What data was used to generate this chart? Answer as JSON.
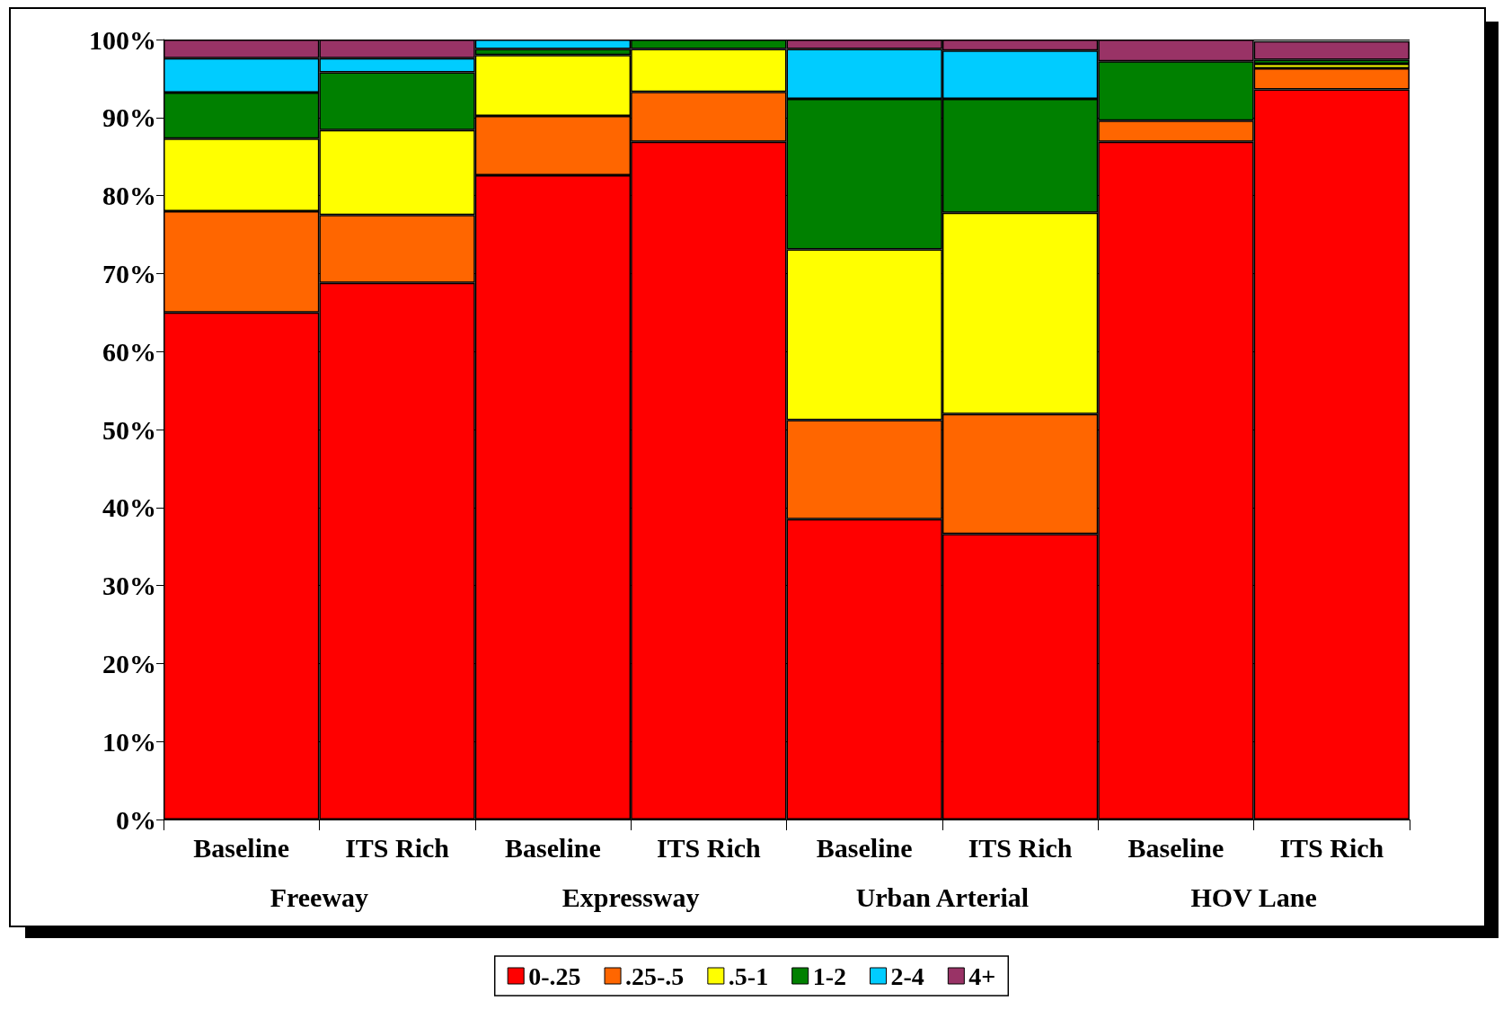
{
  "chart_data": {
    "type": "bar",
    "stacked": true,
    "categories": [
      "Baseline",
      "ITS Rich",
      "Baseline",
      "ITS Rich",
      "Baseline",
      "ITS Rich",
      "Baseline",
      "ITS Rich"
    ],
    "annotations": [
      "Freeway",
      "Expressway",
      "Urban Arterial",
      "HOV Lane"
    ],
    "series": [
      {
        "name": "0-.25",
        "color": "#ff0000",
        "values": [
          65,
          68.8,
          82.6,
          86.9,
          38.5,
          36.6,
          86.9,
          93.6
        ]
      },
      {
        "name": ".25-.5",
        "color": "#ff6600",
        "values": [
          13,
          8.7,
          7.6,
          6.4,
          12.7,
          15.4,
          2.7,
          2.7
        ]
      },
      {
        "name": ".5-1",
        "color": "#ffff00",
        "values": [
          9.3,
          10.9,
          7.8,
          5.5,
          21.9,
          25.8,
          0,
          0.6
        ]
      },
      {
        "name": "1-2",
        "color": "#008000",
        "values": [
          5.9,
          7.4,
          0.8,
          1.2,
          19.3,
          14.6,
          7.6,
          0.5
        ]
      },
      {
        "name": "2-4",
        "color": "#00ccff",
        "values": [
          4.4,
          1.8,
          1.2,
          0,
          6.4,
          6.2,
          0,
          0
        ]
      },
      {
        "name": "4+",
        "color": "#993366",
        "values": [
          2.4,
          2.4,
          0,
          0,
          1.2,
          1.4,
          2.8,
          2.4
        ]
      }
    ],
    "ylim": [
      0,
      100
    ],
    "yticks": [
      {
        "value": 0,
        "label": "0%"
      },
      {
        "value": 10,
        "label": "10%"
      },
      {
        "value": 20,
        "label": "20%"
      },
      {
        "value": 30,
        "label": "30%"
      },
      {
        "value": 40,
        "label": "40%"
      },
      {
        "value": 50,
        "label": "50%"
      },
      {
        "value": 60,
        "label": "60%"
      },
      {
        "value": 70,
        "label": "70%"
      },
      {
        "value": 80,
        "label": "80%"
      },
      {
        "value": 90,
        "label": "90%"
      },
      {
        "value": 100,
        "label": "100%"
      }
    ],
    "grid": "y",
    "legend": "bottom"
  }
}
